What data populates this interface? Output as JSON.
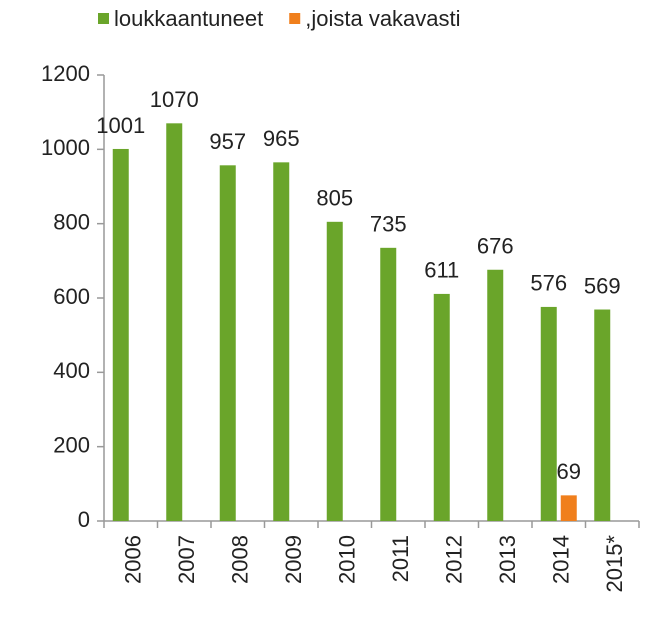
{
  "chart_data": {
    "type": "bar",
    "categories": [
      "2006",
      "2007",
      "2008",
      "2009",
      "2010",
      "2011",
      "2012",
      "2013",
      "2014",
      "2015*"
    ],
    "series": [
      {
        "name": "loukkaantuneet",
        "color": "#6aa52a",
        "values": [
          1001,
          1070,
          957,
          965,
          805,
          735,
          611,
          676,
          576,
          569
        ]
      },
      {
        "name": ",joista vakavasti",
        "color": "#f07f1c",
        "values": [
          null,
          null,
          null,
          null,
          null,
          null,
          null,
          null,
          69,
          null
        ]
      }
    ],
    "ylim": [
      0,
      1200
    ],
    "yticks": [
      0,
      200,
      400,
      600,
      800,
      1000,
      1200
    ],
    "legend": "top"
  }
}
